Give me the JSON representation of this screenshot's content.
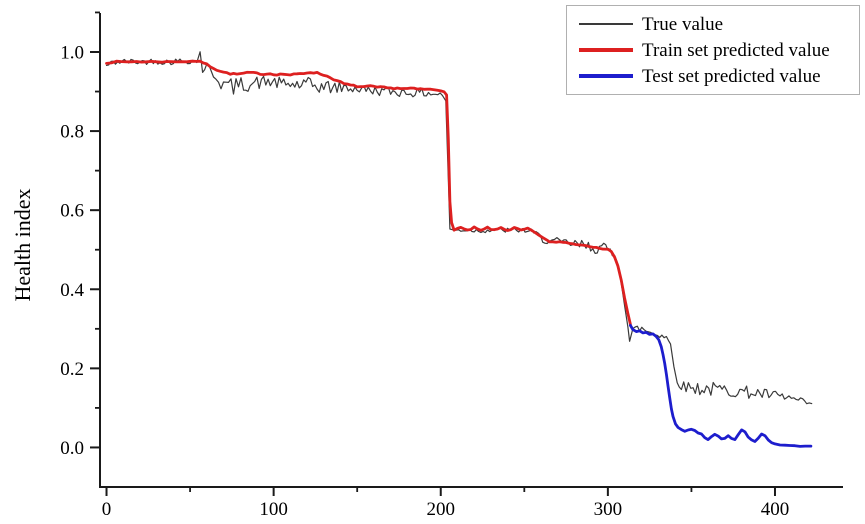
{
  "figure": {
    "background": "#ffffff",
    "axis_color": "#1a1a1a",
    "tick_label_color": "#000000"
  },
  "y_axis": {
    "label": "Health index",
    "tick_values": [
      0.0,
      0.2,
      0.4,
      0.6,
      0.8,
      1.0
    ],
    "tick_labels": [
      "0.0",
      "0.2",
      "0.4",
      "0.6",
      "0.8",
      "1.0"
    ],
    "minor_ticks": [
      0.1,
      0.3,
      0.5,
      0.7,
      0.9,
      1.1
    ]
  },
  "x_axis": {
    "label": "",
    "tick_values": [
      0,
      100,
      200,
      300,
      400
    ],
    "tick_labels": [
      "0",
      "100",
      "200",
      "300",
      "400"
    ],
    "minor_ticks": [
      50,
      150,
      250,
      350
    ]
  },
  "legend": {
    "border_color": "#b0b0b0",
    "entries": [
      {
        "label": "True value",
        "color": "#3a3a3a",
        "sample_thickness": 1.5
      },
      {
        "label": "Train set predicted value",
        "color": "#dd2020",
        "sample_thickness": 4
      },
      {
        "label": "Test set predicted value",
        "color": "#1d1dcd",
        "sample_thickness": 4
      }
    ]
  },
  "chart_data": {
    "type": "line",
    "title": "",
    "xlabel": "",
    "ylabel": "Health index",
    "xlim": [
      -3.9,
      440.7
    ],
    "ylim": [
      -0.1,
      1.0986
    ],
    "grid": false,
    "legend_position": "top-right",
    "series": [
      {
        "name": "True value",
        "color": "#3a3a3a",
        "width": 1.2,
        "noise_seed": 42,
        "noise_step": 1.4,
        "anchors": [
          [
            0,
            0.965,
            0.006
          ],
          [
            4,
            0.974,
            0.008
          ],
          [
            12,
            0.976,
            0.007
          ],
          [
            20,
            0.975,
            0.008
          ],
          [
            28,
            0.977,
            0.007
          ],
          [
            36,
            0.975,
            0.008
          ],
          [
            44,
            0.977,
            0.008
          ],
          [
            50,
            0.979,
            0.009
          ],
          [
            54,
            0.976,
            0.005
          ],
          [
            56,
            1.0,
            0.002
          ],
          [
            57.5,
            0.952,
            0.006
          ],
          [
            60,
            0.965,
            0.01
          ],
          [
            64,
            0.945,
            0.014
          ],
          [
            70,
            0.917,
            0.022
          ],
          [
            76,
            0.912,
            0.022
          ],
          [
            82,
            0.918,
            0.02
          ],
          [
            90,
            0.922,
            0.018
          ],
          [
            98,
            0.925,
            0.016
          ],
          [
            106,
            0.919,
            0.015
          ],
          [
            114,
            0.917,
            0.018
          ],
          [
            122,
            0.916,
            0.02
          ],
          [
            130,
            0.912,
            0.018
          ],
          [
            138,
            0.91,
            0.016
          ],
          [
            146,
            0.909,
            0.013
          ],
          [
            154,
            0.905,
            0.012
          ],
          [
            162,
            0.902,
            0.012
          ],
          [
            170,
            0.9,
            0.012
          ],
          [
            178,
            0.898,
            0.012
          ],
          [
            186,
            0.897,
            0.011
          ],
          [
            194,
            0.896,
            0.011
          ],
          [
            201,
            0.892,
            0.009
          ],
          [
            203,
            0.878,
            0.004
          ],
          [
            204.5,
            0.68,
            0.002
          ],
          [
            205.5,
            0.553,
            0.002
          ],
          [
            208,
            0.549,
            0.005
          ],
          [
            216,
            0.55,
            0.006
          ],
          [
            224,
            0.548,
            0.006
          ],
          [
            232,
            0.55,
            0.006
          ],
          [
            240,
            0.549,
            0.007
          ],
          [
            248,
            0.55,
            0.007
          ],
          [
            253,
            0.547,
            0.007
          ],
          [
            257,
            0.54,
            0.008
          ],
          [
            261,
            0.528,
            0.01
          ],
          [
            265,
            0.521,
            0.012
          ],
          [
            271,
            0.518,
            0.012
          ],
          [
            279,
            0.514,
            0.013
          ],
          [
            287,
            0.509,
            0.015
          ],
          [
            295,
            0.504,
            0.016
          ],
          [
            300,
            0.5,
            0.015
          ],
          [
            304,
            0.49,
            0.01
          ],
          [
            306,
            0.468,
            0.006
          ],
          [
            308,
            0.42,
            0.004
          ],
          [
            310,
            0.36,
            0.003
          ],
          [
            312,
            0.305,
            0.004
          ],
          [
            313,
            0.268,
            0.004
          ],
          [
            315,
            0.297,
            0.009
          ],
          [
            319,
            0.302,
            0.012
          ],
          [
            323,
            0.295,
            0.013
          ],
          [
            327,
            0.29,
            0.012
          ],
          [
            331,
            0.286,
            0.011
          ],
          [
            335,
            0.28,
            0.009
          ],
          [
            337.5,
            0.26,
            0.006
          ],
          [
            339.5,
            0.205,
            0.004
          ],
          [
            341.5,
            0.168,
            0.006
          ],
          [
            344,
            0.155,
            0.012
          ],
          [
            351,
            0.151,
            0.017
          ],
          [
            359,
            0.148,
            0.019
          ],
          [
            367,
            0.146,
            0.018
          ],
          [
            375,
            0.143,
            0.016
          ],
          [
            383,
            0.14,
            0.016
          ],
          [
            391,
            0.136,
            0.014
          ],
          [
            399,
            0.131,
            0.014
          ],
          [
            407,
            0.126,
            0.012
          ],
          [
            414,
            0.119,
            0.009
          ],
          [
            419,
            0.113,
            0.006
          ],
          [
            422,
            0.11,
            0.003
          ]
        ]
      },
      {
        "name": "Train set predicted value",
        "color": "#dd2020",
        "width": 2.8,
        "noise_seed": 7,
        "noise_step": 2.5,
        "noise_amp": 0.0018,
        "anchors": [
          [
            0,
            0.973
          ],
          [
            6,
            0.975
          ],
          [
            12,
            0.975
          ],
          [
            18,
            0.976
          ],
          [
            24,
            0.975
          ],
          [
            30,
            0.976
          ],
          [
            36,
            0.975
          ],
          [
            42,
            0.976
          ],
          [
            48,
            0.976
          ],
          [
            54,
            0.977
          ],
          [
            58,
            0.973
          ],
          [
            62,
            0.964
          ],
          [
            66,
            0.955
          ],
          [
            70,
            0.949
          ],
          [
            74,
            0.945
          ],
          [
            78,
            0.944
          ],
          [
            82,
            0.946
          ],
          [
            86,
            0.948
          ],
          [
            90,
            0.946
          ],
          [
            94,
            0.944
          ],
          [
            98,
            0.945
          ],
          [
            102,
            0.943
          ],
          [
            106,
            0.944
          ],
          [
            110,
            0.942
          ],
          [
            114,
            0.944
          ],
          [
            118,
            0.946
          ],
          [
            122,
            0.949
          ],
          [
            126,
            0.947
          ],
          [
            130,
            0.942
          ],
          [
            134,
            0.935
          ],
          [
            138,
            0.927
          ],
          [
            142,
            0.92
          ],
          [
            146,
            0.916
          ],
          [
            150,
            0.913
          ],
          [
            154,
            0.912
          ],
          [
            158,
            0.913
          ],
          [
            162,
            0.911
          ],
          [
            166,
            0.91
          ],
          [
            170,
            0.908
          ],
          [
            174,
            0.909
          ],
          [
            178,
            0.907
          ],
          [
            182,
            0.908
          ],
          [
            186,
            0.906
          ],
          [
            190,
            0.906
          ],
          [
            194,
            0.905
          ],
          [
            198,
            0.904
          ],
          [
            202,
            0.901
          ],
          [
            203.5,
            0.893
          ],
          [
            204.5,
            0.78
          ],
          [
            205.5,
            0.62
          ],
          [
            206.5,
            0.568
          ],
          [
            208,
            0.551
          ],
          [
            212,
            0.556
          ],
          [
            216,
            0.548
          ],
          [
            220,
            0.556
          ],
          [
            224,
            0.548
          ],
          [
            228,
            0.556
          ],
          [
            232,
            0.549
          ],
          [
            236,
            0.556
          ],
          [
            240,
            0.549
          ],
          [
            244,
            0.555
          ],
          [
            248,
            0.549
          ],
          [
            252,
            0.553
          ],
          [
            255,
            0.547
          ],
          [
            258,
            0.538
          ],
          [
            261,
            0.529
          ],
          [
            264,
            0.523
          ],
          [
            265,
            0.521
          ],
          [
            269,
            0.518
          ],
          [
            273,
            0.52
          ],
          [
            277,
            0.516
          ],
          [
            281,
            0.514
          ],
          [
            285,
            0.512
          ],
          [
            289,
            0.509
          ],
          [
            293,
            0.507
          ],
          [
            297,
            0.503
          ],
          [
            300,
            0.5
          ],
          [
            302,
            0.494
          ],
          [
            304,
            0.483
          ],
          [
            306,
            0.46
          ],
          [
            308,
            0.424
          ],
          [
            310,
            0.378
          ],
          [
            312,
            0.338
          ],
          [
            313.5,
            0.312
          ]
        ]
      },
      {
        "name": "Test set predicted value",
        "color": "#1d1dcd",
        "width": 2.8,
        "noise_seed": 3,
        "noise_step": 2.5,
        "noise_amp": 0.0012,
        "anchors": [
          [
            313.5,
            0.308
          ],
          [
            315,
            0.299
          ],
          [
            317,
            0.293
          ],
          [
            319,
            0.296
          ],
          [
            321,
            0.289
          ],
          [
            323,
            0.291
          ],
          [
            325,
            0.286
          ],
          [
            327,
            0.288
          ],
          [
            329,
            0.281
          ],
          [
            330.5,
            0.272
          ],
          [
            332,
            0.255
          ],
          [
            333,
            0.236
          ],
          [
            334,
            0.212
          ],
          [
            335,
            0.185
          ],
          [
            336,
            0.155
          ],
          [
            337,
            0.125
          ],
          [
            338,
            0.098
          ],
          [
            339,
            0.078
          ],
          [
            340.5,
            0.06
          ],
          [
            342,
            0.05
          ],
          [
            344,
            0.045
          ],
          [
            346,
            0.04
          ],
          [
            348,
            0.044
          ],
          [
            350,
            0.047
          ],
          [
            352,
            0.042
          ],
          [
            354,
            0.037
          ],
          [
            356,
            0.033
          ],
          [
            358,
            0.024
          ],
          [
            360,
            0.02
          ],
          [
            362,
            0.027
          ],
          [
            364,
            0.034
          ],
          [
            366,
            0.029
          ],
          [
            368,
            0.021
          ],
          [
            370,
            0.024
          ],
          [
            372,
            0.031
          ],
          [
            374,
            0.023
          ],
          [
            376,
            0.019
          ],
          [
            378,
            0.032
          ],
          [
            380,
            0.044
          ],
          [
            382,
            0.039
          ],
          [
            384,
            0.026
          ],
          [
            386,
            0.019
          ],
          [
            388,
            0.016
          ],
          [
            390,
            0.024
          ],
          [
            392,
            0.034
          ],
          [
            394,
            0.029
          ],
          [
            396,
            0.019
          ],
          [
            398,
            0.012
          ],
          [
            400,
            0.009
          ],
          [
            403,
            0.006
          ],
          [
            406,
            0.005
          ],
          [
            409,
            0.004
          ],
          [
            412,
            0.004
          ],
          [
            415,
            0.003
          ],
          [
            418,
            0.003
          ],
          [
            421.5,
            0.003
          ]
        ]
      }
    ]
  }
}
